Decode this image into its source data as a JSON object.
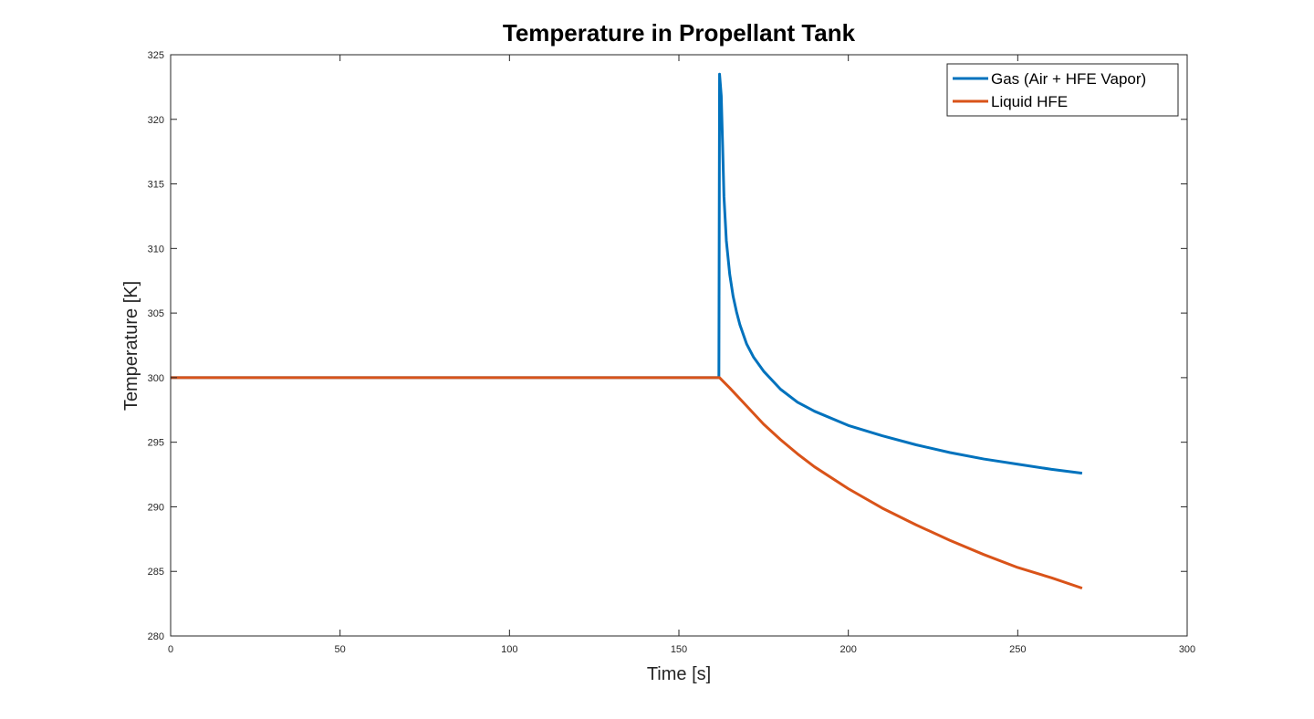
{
  "chart_data": {
    "type": "line",
    "title": "Temperature in Propellant Tank",
    "xlabel": "Time [s]",
    "ylabel": "Temperature [K]",
    "xlim": [
      0,
      300
    ],
    "ylim": [
      280,
      325
    ],
    "xticks": [
      0,
      50,
      100,
      150,
      200,
      250,
      300
    ],
    "yticks": [
      280,
      285,
      290,
      295,
      300,
      305,
      310,
      315,
      320,
      325
    ],
    "grid": false,
    "legend_position": "top-right",
    "series": [
      {
        "name": "Gas (Air + HFE Vapor)",
        "color": "#0072BD",
        "x": [
          0,
          50,
          100,
          150,
          161.8,
          162.0,
          162.5,
          162.9,
          163.3,
          164,
          165,
          166,
          167,
          168,
          170,
          172,
          175,
          180,
          185,
          190,
          200,
          210,
          220,
          230,
          240,
          250,
          260,
          269
        ],
        "y": [
          300,
          300,
          300,
          300,
          300,
          323.5,
          321.8,
          318.0,
          314.0,
          310.6,
          308.0,
          306.3,
          305.1,
          304.1,
          302.6,
          301.6,
          300.5,
          299.1,
          298.1,
          297.4,
          296.3,
          295.5,
          294.8,
          294.2,
          293.7,
          293.3,
          292.9,
          292.6
        ]
      },
      {
        "name": "Liquid HFE",
        "color": "#D95319",
        "x": [
          0,
          50,
          100,
          150,
          162,
          165,
          170,
          175,
          180,
          185,
          190,
          200,
          210,
          220,
          230,
          240,
          250,
          260,
          269
        ],
        "y": [
          300,
          300,
          300,
          300,
          300,
          299.2,
          297.8,
          296.4,
          295.2,
          294.1,
          293.1,
          291.4,
          289.9,
          288.6,
          287.4,
          286.3,
          285.3,
          284.5,
          283.7
        ]
      }
    ]
  }
}
